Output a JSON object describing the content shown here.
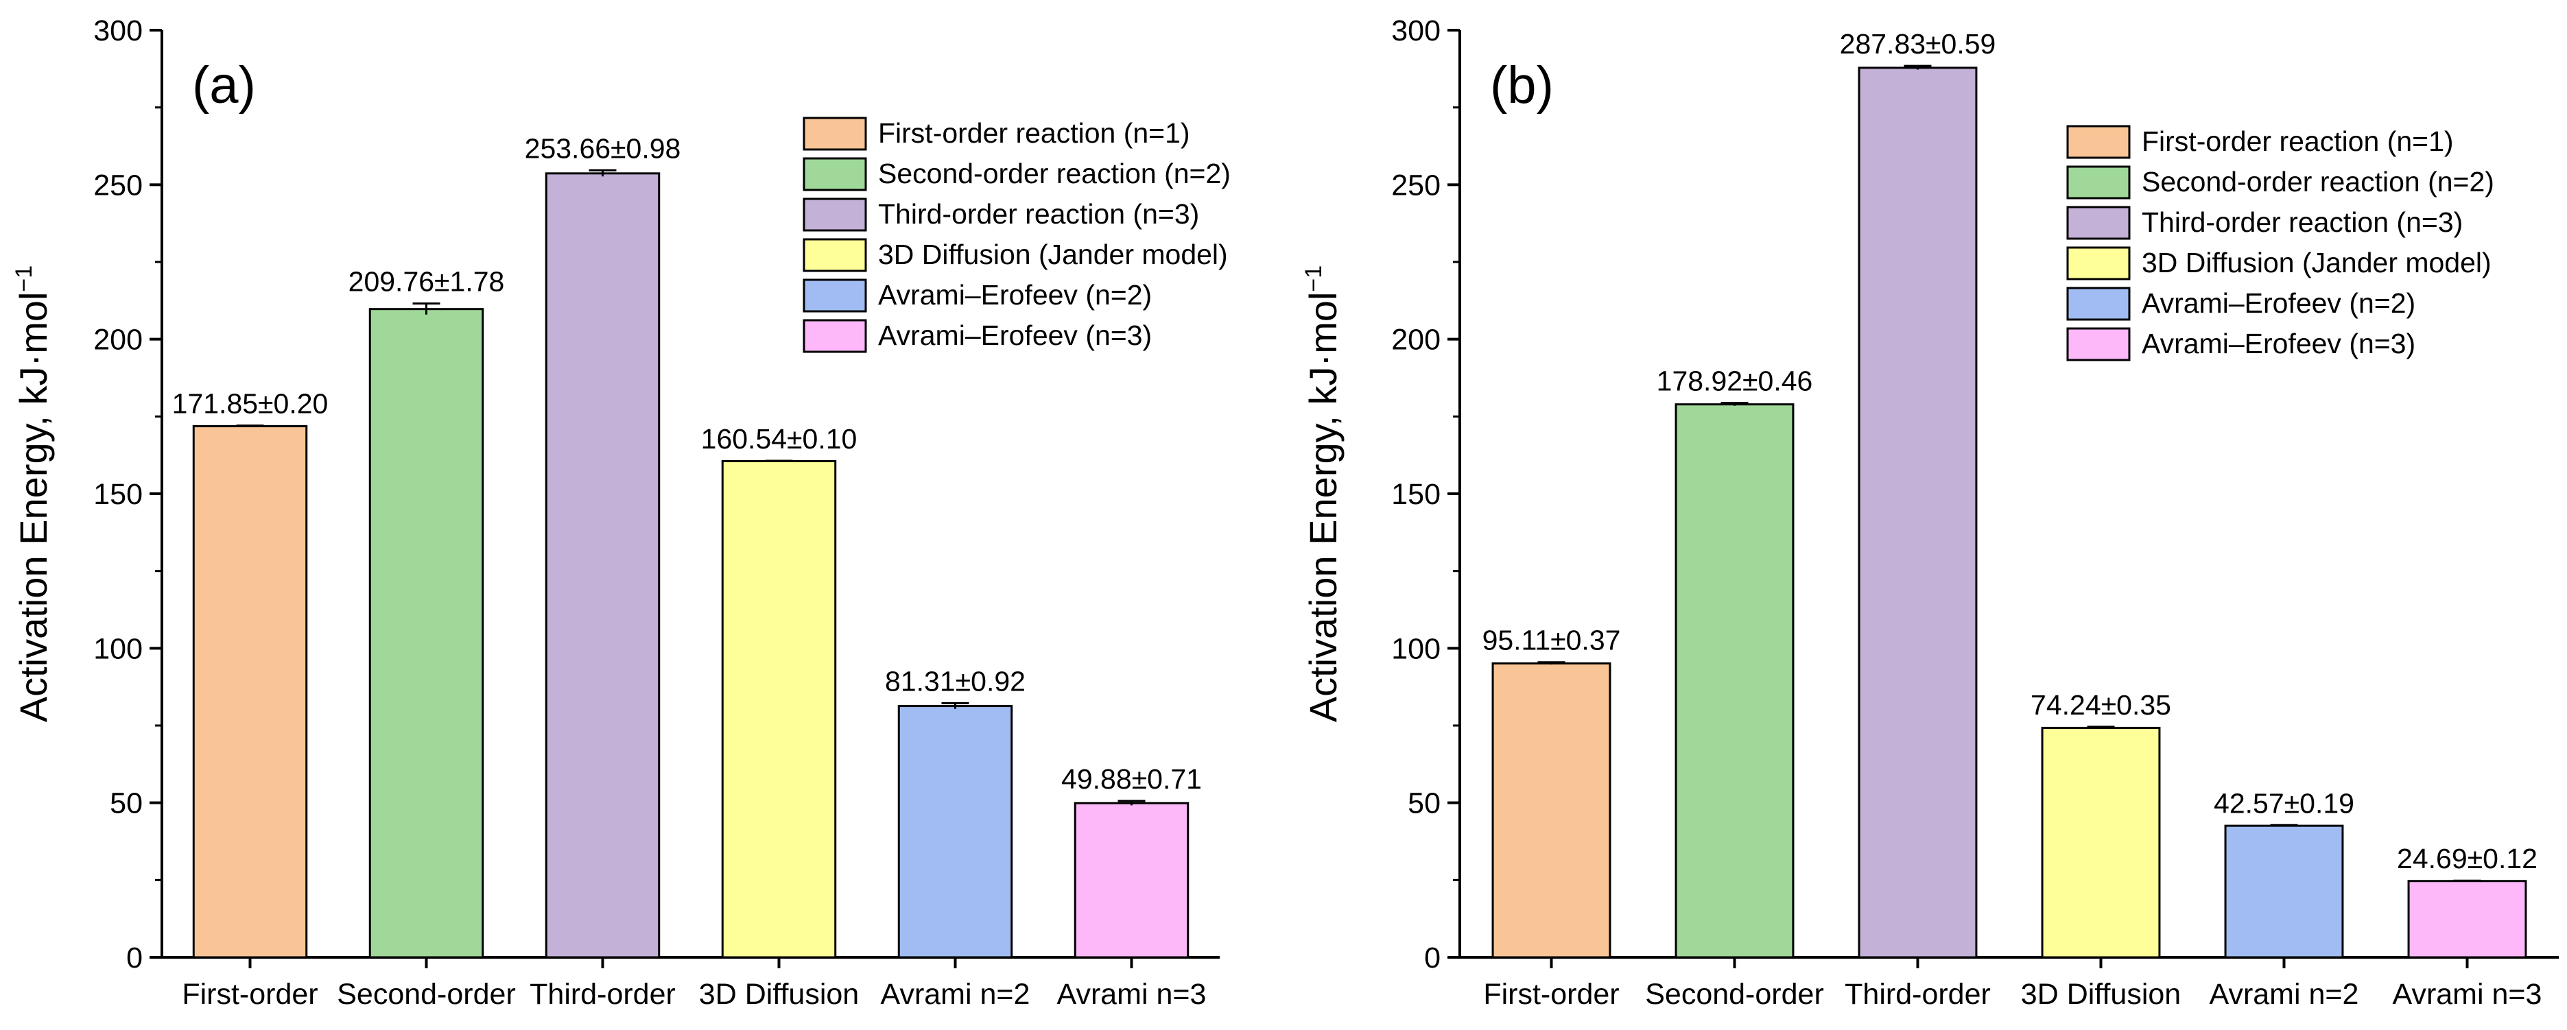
{
  "chart_data": [
    {
      "type": "bar",
      "panel_label": "(a)",
      "ylabel": "Activation Energy, kJ·mol",
      "ylabel_sup": "−1",
      "ylim": [
        0,
        300
      ],
      "yticks": [
        0,
        50,
        100,
        150,
        200,
        250,
        300
      ],
      "categories": [
        "First-order",
        "Second-order",
        "Third-order",
        "3D Diffusion",
        "Avrami n=2",
        "Avrami n=3"
      ],
      "values": [
        171.85,
        209.76,
        253.66,
        160.54,
        81.31,
        49.88
      ],
      "errors": [
        0.2,
        1.78,
        0.98,
        0.1,
        0.92,
        0.71
      ],
      "value_labels": [
        "171.85±0.20",
        "209.76±1.78",
        "253.66±0.98",
        "160.54±0.10",
        "81.31±0.92",
        "49.88±0.71"
      ],
      "colors": [
        "#F9C596",
        "#A0D89A",
        "#C3B1D8",
        "#FFFF99",
        "#A0BCF2",
        "#FCB8F8"
      ],
      "legend": [
        "First-order reaction (n=1)",
        "Second-order reaction (n=2)",
        "Third-order reaction (n=3)",
        "3D Diffusion (Jander model)",
        "Avrami–Erofeev (n=2)",
        "Avrami–Erofeev (n=3)"
      ],
      "legend_position": "top-right"
    },
    {
      "type": "bar",
      "panel_label": "(b)",
      "ylabel": "Activation Energy, kJ·mol",
      "ylabel_sup": "−1",
      "ylim": [
        0,
        300
      ],
      "yticks": [
        0,
        50,
        100,
        150,
        200,
        250,
        300
      ],
      "categories": [
        "First-order",
        "Second-order",
        "Third-order",
        "3D Diffusion",
        "Avrami n=2",
        "Avrami n=3"
      ],
      "values": [
        95.11,
        178.92,
        287.83,
        74.24,
        42.57,
        24.69
      ],
      "errors": [
        0.37,
        0.46,
        0.59,
        0.35,
        0.19,
        0.12
      ],
      "value_labels": [
        "95.11±0.37",
        "178.92±0.46",
        "287.83±0.59",
        "74.24±0.35",
        "42.57±0.19",
        "24.69±0.12"
      ],
      "colors": [
        "#F9C596",
        "#A0D89A",
        "#C3B1D8",
        "#FFFF99",
        "#A0BCF2",
        "#FCB8F8"
      ],
      "legend": [
        "First-order reaction (n=1)",
        "Second-order reaction (n=2)",
        "Third-order reaction (n=3)",
        "3D Diffusion (Jander model)",
        "Avrami–Erofeev (n=2)",
        "Avrami–Erofeev (n=3)"
      ],
      "legend_position": "top-right"
    }
  ]
}
